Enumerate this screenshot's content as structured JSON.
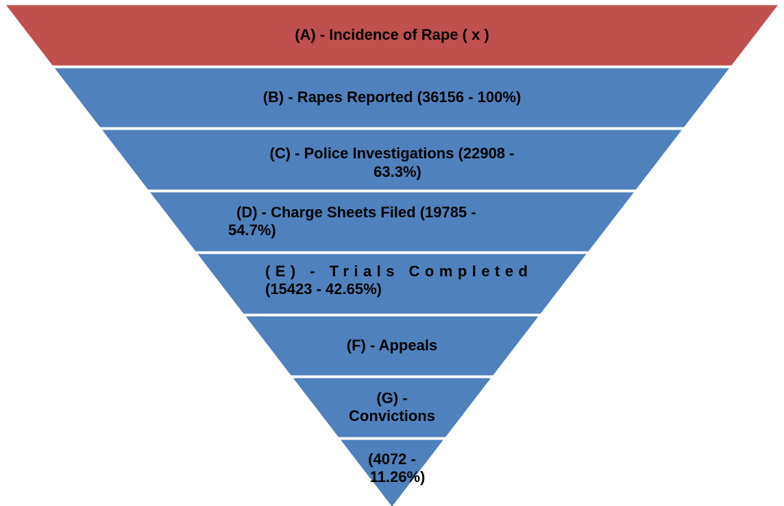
{
  "layers": [
    {
      "lines": [
        "(A) - Incidence of Rape ( x )"
      ]
    },
    {
      "lines": [
        "(B) - Rapes Reported (36156 - 100%)"
      ]
    },
    {
      "lines": [
        "(C) - Police Investigations (22908 -",
        "63.3%)"
      ]
    },
    {
      "lines": [
        "(D) - Charge Sheets Filed (19785 -",
        "54.7%)"
      ]
    },
    {
      "lines": [
        "(E)      -      Trials      Completed",
        "(15423 - 42.65%)"
      ]
    },
    {
      "lines": [
        "(F) - Appeals"
      ]
    },
    {
      "lines": [
        "(G) -",
        "Convictions"
      ]
    },
    {
      "lines": [
        "(4072 -",
        "11.26%)"
      ]
    }
  ]
}
